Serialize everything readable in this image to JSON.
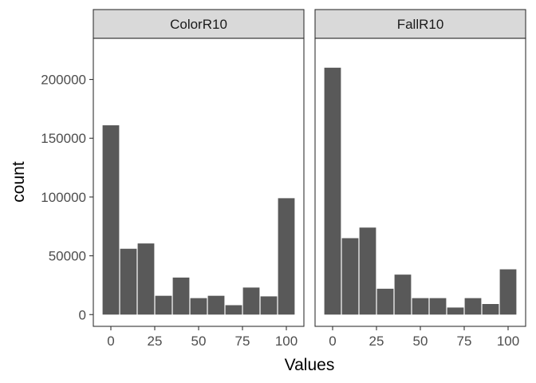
{
  "chart_data": {
    "type": "bar",
    "layout": "facet",
    "xlabel": "Values",
    "ylabel": "count",
    "ylim": [
      -10000,
      235000
    ],
    "xlim": [
      -10,
      110
    ],
    "x_ticks": [
      0,
      25,
      50,
      75,
      100
    ],
    "y_ticks": [
      0,
      50000,
      100000,
      150000,
      200000
    ],
    "bin_width": 10,
    "x": [
      0,
      10,
      20,
      30,
      40,
      50,
      60,
      70,
      80,
      90,
      100
    ],
    "bar_color": "#595959",
    "strip_color": "#d9d9d9",
    "grid": false,
    "series": [
      {
        "name": "ColorR10",
        "values": [
          161000,
          56000,
          60500,
          16000,
          31500,
          14000,
          16000,
          8000,
          23000,
          15500,
          99000
        ]
      },
      {
        "name": "FallR10",
        "values": [
          210000,
          65000,
          74000,
          22000,
          34000,
          14000,
          14000,
          6000,
          14000,
          9000,
          38500
        ]
      }
    ]
  }
}
